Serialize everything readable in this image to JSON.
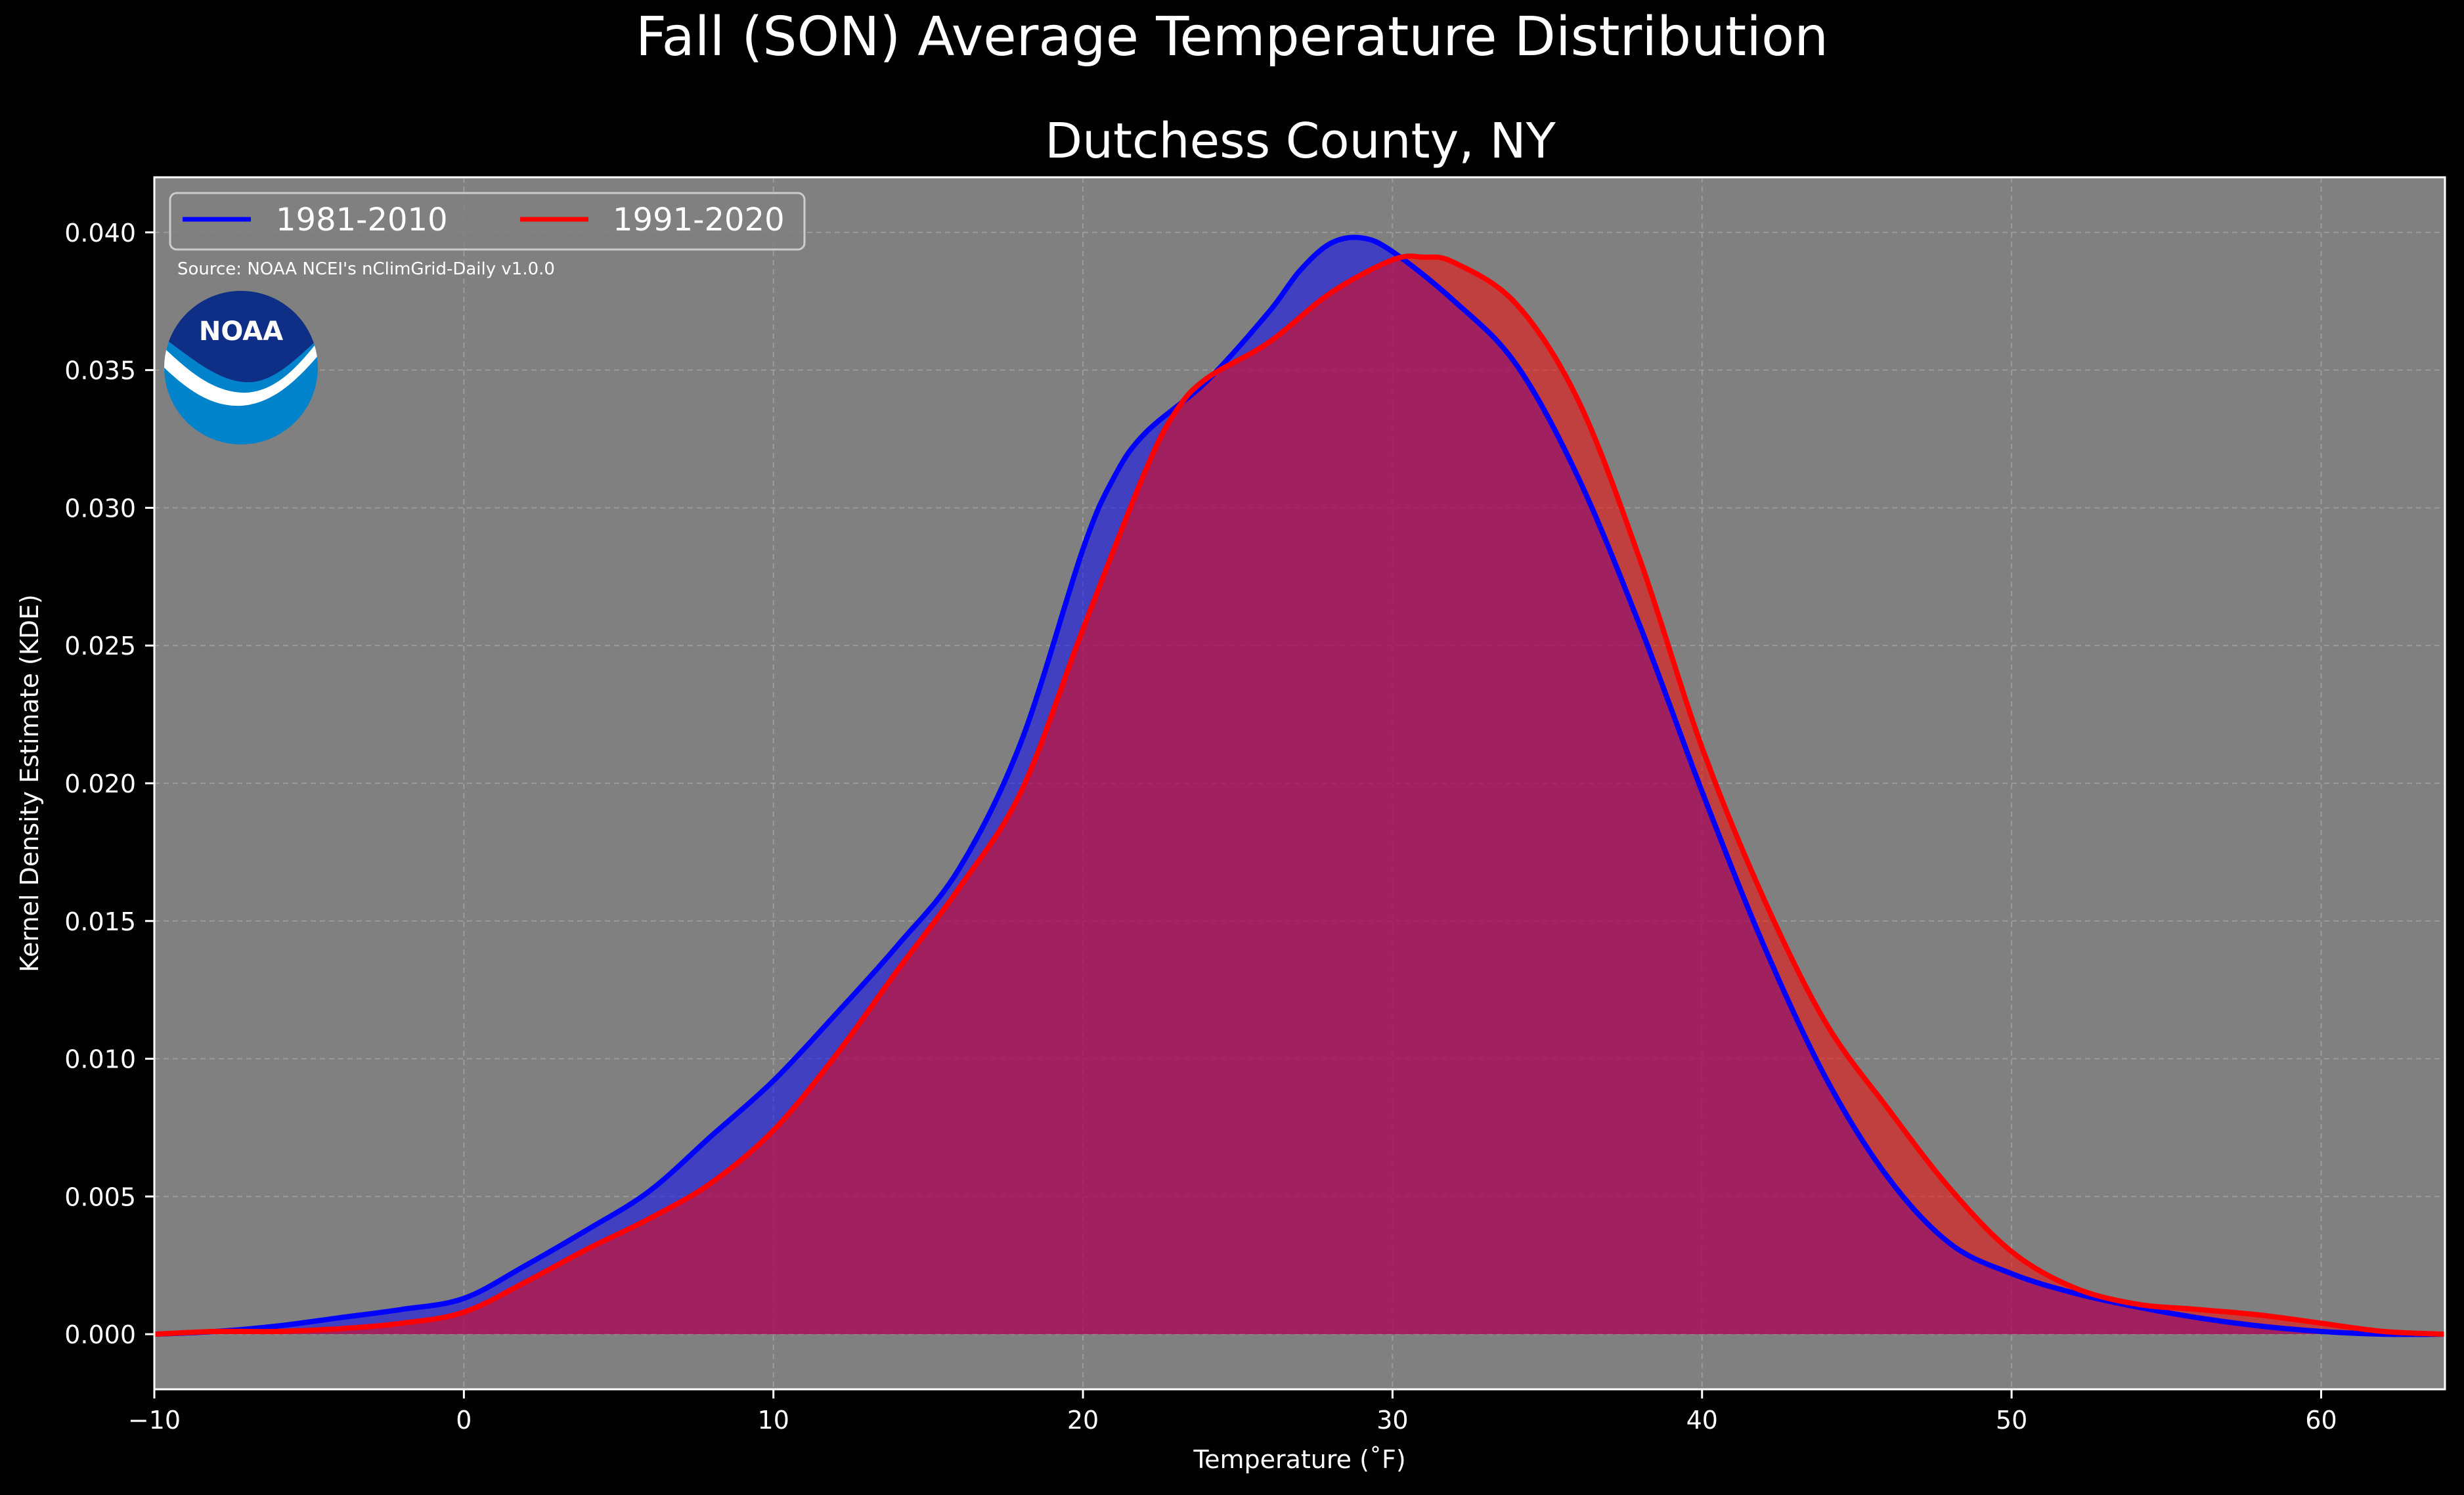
{
  "colors": {
    "background": "#000000",
    "plot_background": "#808080",
    "series_1981": "#0000ff",
    "series_1991": "#ff0000",
    "grid": "#b0b0b0",
    "noaa_dark": "#0f2e86",
    "noaa_light": "#0083ca"
  },
  "logo": {
    "icon": "noaa-logo-icon",
    "text": "NOAA"
  },
  "chart_data": {
    "type": "area",
    "title": "Fall (SON) Average Temperature Distribution",
    "subtitle": "Dutchess County, NY",
    "xlabel": "Temperature (˚F)",
    "ylabel": "Kernel Density Estimate (KDE)",
    "xlim": [
      -10,
      64
    ],
    "ylim": [
      -0.002,
      0.042
    ],
    "xticks": [
      -10,
      0,
      10,
      20,
      30,
      40,
      50,
      60
    ],
    "xtick_labels": [
      "−10",
      "0",
      "10",
      "20",
      "30",
      "40",
      "50",
      "60"
    ],
    "yticks": [
      0.0,
      0.005,
      0.01,
      0.015,
      0.02,
      0.025,
      0.03,
      0.035,
      0.04
    ],
    "ytick_labels": [
      "0.000",
      "0.005",
      "0.010",
      "0.015",
      "0.020",
      "0.025",
      "0.030",
      "0.035",
      "0.040"
    ],
    "grid": true,
    "legend_position": "top-left",
    "source_note": "Source: NOAA NCEI's nClimGrid-Daily v1.0.0",
    "series": [
      {
        "name": "1981-2010",
        "x": [
          -10,
          -8,
          -6,
          -4,
          -2,
          0,
          2,
          4,
          6,
          8,
          10,
          12,
          14,
          16,
          18,
          20,
          21,
          22,
          24,
          26,
          27,
          28,
          29,
          30,
          32,
          34,
          36,
          38,
          40,
          42,
          44,
          46,
          48,
          50,
          52,
          54,
          56,
          58,
          60,
          62,
          64
        ],
        "y": [
          0.0,
          0.0001,
          0.0003,
          0.0006,
          0.0009,
          0.0013,
          0.0025,
          0.0038,
          0.0052,
          0.0072,
          0.0092,
          0.0116,
          0.0141,
          0.0169,
          0.0215,
          0.0285,
          0.0311,
          0.0327,
          0.0346,
          0.0371,
          0.0386,
          0.0396,
          0.0398,
          0.0393,
          0.0375,
          0.0352,
          0.0311,
          0.0257,
          0.0197,
          0.0141,
          0.0093,
          0.0057,
          0.0033,
          0.0022,
          0.0015,
          0.001,
          0.0006,
          0.0003,
          0.0001,
          0.0,
          0.0
        ]
      },
      {
        "name": "1991-2020",
        "x": [
          -10,
          -8,
          -6,
          -4,
          -2,
          0,
          2,
          4,
          6,
          8,
          10,
          12,
          14,
          16,
          18,
          20,
          22,
          23,
          24,
          26,
          28,
          30,
          31,
          32,
          34,
          36,
          38,
          40,
          42,
          44,
          46,
          48,
          50,
          52,
          54,
          56,
          58,
          60,
          62,
          64
        ],
        "y": [
          0.0,
          0.0001,
          0.0001,
          0.0002,
          0.0004,
          0.0008,
          0.0019,
          0.0031,
          0.0042,
          0.0055,
          0.0074,
          0.0101,
          0.0132,
          0.0162,
          0.0197,
          0.0256,
          0.0313,
          0.0335,
          0.0347,
          0.036,
          0.0378,
          0.039,
          0.0391,
          0.0389,
          0.0374,
          0.0339,
          0.0281,
          0.0213,
          0.0158,
          0.0113,
          0.0082,
          0.0053,
          0.003,
          0.0017,
          0.0011,
          0.0009,
          0.0007,
          0.0004,
          0.0001,
          0.0
        ]
      }
    ]
  }
}
